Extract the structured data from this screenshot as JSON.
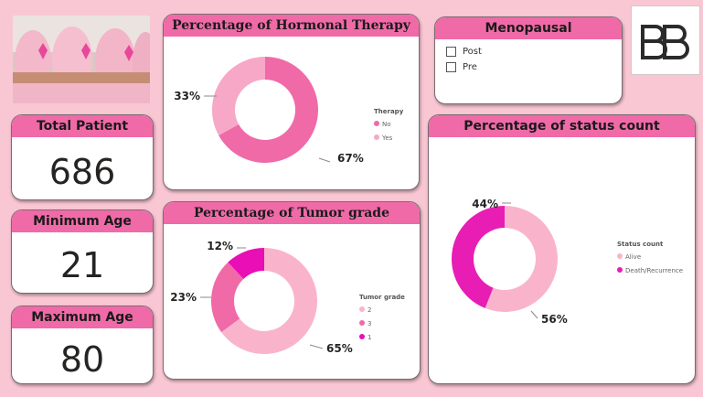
{
  "colors": {
    "background": "#f9c7d3",
    "header": "#f06aa8",
    "pink_dark": "#f06aa8",
    "pink_light": "#f7a8c6",
    "pink_pale": "#f9b4cc",
    "magenta": "#e90eb5",
    "magenta2": "#e81db4"
  },
  "kpis": {
    "total_patient": {
      "label": "Total Patient",
      "value": "686"
    },
    "minimum_age": {
      "label": "Minimum Age",
      "value": "21"
    },
    "maximum_age": {
      "label": "Maximum Age",
      "value": "80"
    }
  },
  "menopausal": {
    "title": "Menopausal",
    "options": [
      "Post",
      "Pre"
    ]
  },
  "logo": {
    "text": "BB",
    "icon": "bb-logo-icon"
  },
  "photo": {
    "icon": "pink-ribbon-photo"
  },
  "chart_data": [
    {
      "type": "pie",
      "title": "Percentage of Hormonal Therapy",
      "legend_title": "Therapy",
      "legend_position": "right",
      "categories": [
        "No",
        "Yes"
      ],
      "values": [
        67,
        33
      ],
      "labels": [
        "67%",
        "33%"
      ],
      "colors": [
        "#f06aa8",
        "#f7a8c6"
      ]
    },
    {
      "type": "pie",
      "title": "Percentage of Tumor grade",
      "legend_title": "Tumor grade",
      "legend_position": "right",
      "categories": [
        "2",
        "3",
        "1"
      ],
      "values": [
        65,
        23,
        12
      ],
      "labels": [
        "65%",
        "23%",
        "12%"
      ],
      "colors": [
        "#f9b4cc",
        "#f06aa8",
        "#e90eb5"
      ]
    },
    {
      "type": "pie",
      "title": "Percentage of status count",
      "legend_title": "Status count",
      "legend_position": "right",
      "categories": [
        "Alive",
        "Death/Recurrence"
      ],
      "values": [
        56,
        44
      ],
      "labels": [
        "56%",
        "44%"
      ],
      "colors": [
        "#f9b4cc",
        "#e81db4"
      ]
    }
  ]
}
